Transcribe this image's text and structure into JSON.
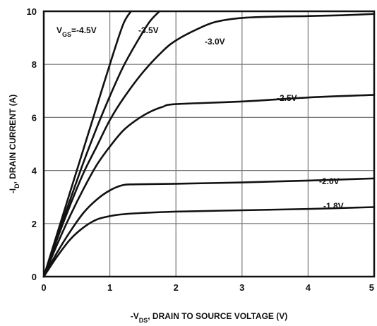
{
  "chart_data": {
    "type": "line",
    "title": "",
    "xlabel_prefix": "-V",
    "xlabel_sub": "DS",
    "xlabel_rest": ", DRAIN TO SOURCE VOLTAGE (V)",
    "ylabel_prefix": "-I",
    "ylabel_sub": "D",
    "ylabel_rest": ", DRAIN CURRENT (A)",
    "xlim": [
      0,
      5
    ],
    "ylim": [
      0,
      10
    ],
    "x_ticks": [
      "0",
      "1",
      "2",
      "3",
      "4",
      "5"
    ],
    "y_ticks": [
      "0",
      "2",
      "4",
      "6",
      "8",
      "10"
    ],
    "grid": true,
    "series": [
      {
        "name": "-4.5V",
        "label_prefix": "V",
        "label_sub": "GS",
        "label_rest": "=-4.5V",
        "x": [
          0,
          0.2,
          0.4,
          0.6,
          0.8,
          1.0,
          1.2,
          1.32
        ],
        "y": [
          0,
          1.6,
          3.2,
          4.8,
          6.4,
          8.0,
          9.5,
          10.0
        ]
      },
      {
        "name": "-3.5V",
        "label_prefix": "-3.5V",
        "label_sub": "",
        "label_rest": "",
        "x": [
          0,
          0.2,
          0.4,
          0.6,
          0.8,
          1.0,
          1.2,
          1.4,
          1.6,
          1.75
        ],
        "y": [
          0,
          1.5,
          2.9,
          4.3,
          5.6,
          6.8,
          7.9,
          8.8,
          9.6,
          10.0
        ]
      },
      {
        "name": "-3.0V",
        "label_prefix": "-3.0V",
        "label_sub": "",
        "label_rest": "",
        "x": [
          0,
          0.2,
          0.4,
          0.6,
          0.8,
          1.0,
          1.2,
          1.5,
          1.8,
          2.0,
          2.3,
          2.6,
          3.0,
          3.5,
          4.0,
          4.5,
          5.0
        ],
        "y": [
          0,
          1.4,
          2.7,
          3.9,
          4.9,
          5.9,
          6.7,
          7.7,
          8.5,
          8.9,
          9.3,
          9.6,
          9.75,
          9.8,
          9.82,
          9.85,
          9.9
        ]
      },
      {
        "name": "-2.5V",
        "label_prefix": "-2.5V",
        "label_sub": "",
        "label_rest": "",
        "x": [
          0,
          0.2,
          0.4,
          0.6,
          0.8,
          1.0,
          1.2,
          1.4,
          1.6,
          1.8,
          2.0,
          3.0,
          4.0,
          5.0
        ],
        "y": [
          0,
          1.2,
          2.3,
          3.3,
          4.2,
          4.9,
          5.5,
          5.9,
          6.2,
          6.4,
          6.5,
          6.6,
          6.75,
          6.85
        ]
      },
      {
        "name": "-2.0V",
        "label_prefix": "-2.0V",
        "label_sub": "",
        "label_rest": "",
        "x": [
          0,
          0.2,
          0.4,
          0.6,
          0.8,
          1.0,
          1.2,
          1.4,
          2.0,
          3.0,
          4.0,
          5.0
        ],
        "y": [
          0,
          0.9,
          1.7,
          2.4,
          2.9,
          3.25,
          3.45,
          3.48,
          3.5,
          3.55,
          3.62,
          3.7
        ]
      },
      {
        "name": "-1.8V",
        "label_prefix": "-1.8V",
        "label_sub": "",
        "label_rest": "",
        "x": [
          0,
          0.2,
          0.4,
          0.6,
          0.8,
          1.0,
          1.2,
          1.5,
          2.0,
          3.0,
          4.0,
          5.0
        ],
        "y": [
          0,
          0.75,
          1.4,
          1.85,
          2.15,
          2.28,
          2.35,
          2.4,
          2.45,
          2.5,
          2.55,
          2.62
        ]
      }
    ]
  }
}
